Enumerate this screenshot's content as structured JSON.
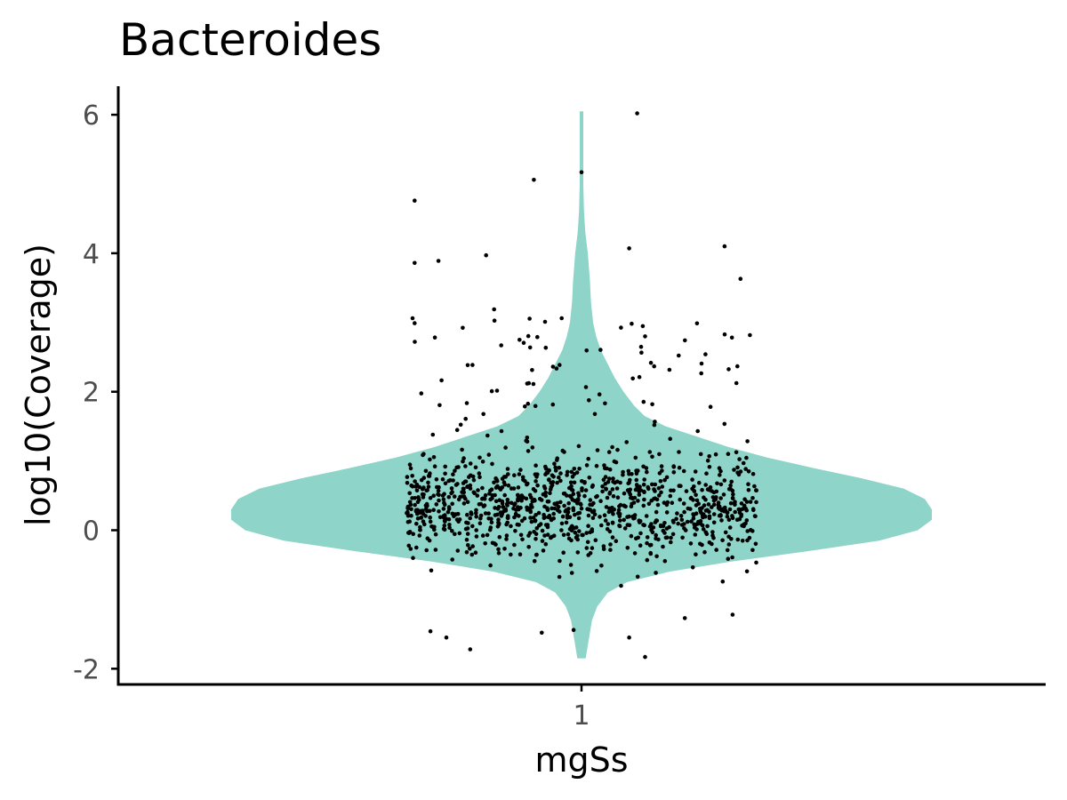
{
  "chart_data": {
    "type": "violin",
    "title": "Bacteroides",
    "xlabel": "mgSs",
    "ylabel": "log10(Coverage)",
    "categories": [
      "1"
    ],
    "yticks": [
      "-2",
      "0",
      "2",
      "4",
      "6"
    ],
    "ylim": [
      -2.2,
      6.4
    ],
    "grid": false,
    "legend": "none",
    "colors": {
      "violin": "#8ed4c8",
      "points": "#000000"
    },
    "violin_density": [
      {
        "y": -1.85,
        "w": 0.012
      },
      {
        "y": -1.6,
        "w": 0.02
      },
      {
        "y": -1.3,
        "w": 0.03
      },
      {
        "y": -1.1,
        "w": 0.045
      },
      {
        "y": -0.9,
        "w": 0.075
      },
      {
        "y": -0.75,
        "w": 0.13
      },
      {
        "y": -0.6,
        "w": 0.25
      },
      {
        "y": -0.45,
        "w": 0.43
      },
      {
        "y": -0.3,
        "w": 0.65
      },
      {
        "y": -0.15,
        "w": 0.85
      },
      {
        "y": 0.0,
        "w": 0.96
      },
      {
        "y": 0.15,
        "w": 1.0
      },
      {
        "y": 0.3,
        "w": 1.0
      },
      {
        "y": 0.45,
        "w": 0.98
      },
      {
        "y": 0.6,
        "w": 0.92
      },
      {
        "y": 0.75,
        "w": 0.8
      },
      {
        "y": 0.9,
        "w": 0.66
      },
      {
        "y": 1.05,
        "w": 0.53
      },
      {
        "y": 1.2,
        "w": 0.42
      },
      {
        "y": 1.35,
        "w": 0.33
      },
      {
        "y": 1.5,
        "w": 0.24
      },
      {
        "y": 1.65,
        "w": 0.18
      },
      {
        "y": 1.8,
        "w": 0.15
      },
      {
        "y": 2.0,
        "w": 0.12
      },
      {
        "y": 2.2,
        "w": 0.095
      },
      {
        "y": 2.4,
        "w": 0.075
      },
      {
        "y": 2.6,
        "w": 0.055
      },
      {
        "y": 2.8,
        "w": 0.042
      },
      {
        "y": 3.0,
        "w": 0.033
      },
      {
        "y": 3.3,
        "w": 0.027
      },
      {
        "y": 3.6,
        "w": 0.024
      },
      {
        "y": 4.0,
        "w": 0.018
      },
      {
        "y": 4.3,
        "w": 0.011
      },
      {
        "y": 4.6,
        "w": 0.007
      },
      {
        "y": 5.0,
        "w": 0.005
      },
      {
        "y": 5.5,
        "w": 0.005
      },
      {
        "y": 6.05,
        "w": 0.005
      }
    ],
    "notable_points": [
      {
        "x": 1.07,
        "y": 6.02
      },
      {
        "x": 1.0,
        "y": 5.17
      },
      {
        "x": 0.94,
        "y": 5.06
      },
      {
        "x": 0.79,
        "y": 4.76
      },
      {
        "x": 1.18,
        "y": 4.1
      },
      {
        "x": 1.06,
        "y": 4.07
      },
      {
        "x": 0.88,
        "y": 3.97
      },
      {
        "x": 0.82,
        "y": 3.89
      },
      {
        "x": 0.79,
        "y": 3.86
      },
      {
        "x": 1.2,
        "y": 3.63
      },
      {
        "x": 0.89,
        "y": 3.19
      },
      {
        "x": 0.79,
        "y": 2.99
      },
      {
        "x": 1.08,
        "y": 2.8
      },
      {
        "x": 1.13,
        "y": -1.27
      },
      {
        "x": 1.19,
        "y": -1.22
      },
      {
        "x": 0.99,
        "y": -1.44
      },
      {
        "x": 0.81,
        "y": -1.46
      },
      {
        "x": 0.83,
        "y": -1.55
      },
      {
        "x": 0.95,
        "y": -1.48
      },
      {
        "x": 1.06,
        "y": -1.55
      },
      {
        "x": 0.86,
        "y": -1.72
      },
      {
        "x": 1.08,
        "y": -1.83
      }
    ],
    "jitter_points": {
      "approx_count": 1100,
      "x_range": [
        0.78,
        1.22
      ],
      "y_median": 0.35,
      "y_spread": 0.6
    }
  }
}
